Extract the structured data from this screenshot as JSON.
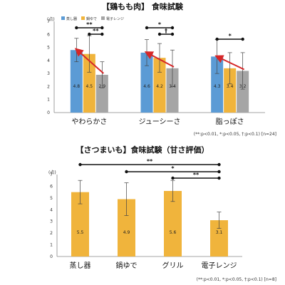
{
  "chart_data": [
    {
      "type": "bar",
      "title": "【鶏もも肉】 食味試験",
      "unit_label": "(点)",
      "ylim": [
        0,
        7
      ],
      "yticks": [
        0,
        1,
        2,
        3,
        4,
        5,
        6,
        7
      ],
      "grid": false,
      "legend_position": "top-left",
      "categories": [
        "やわらかさ",
        "ジューシーさ",
        "脂っぽさ"
      ],
      "series": [
        {
          "name": "蒸し器",
          "color": "#5b9bd5",
          "values": [
            4.8,
            4.6,
            4.3
          ],
          "errors": [
            0.9,
            1.0,
            1.3
          ]
        },
        {
          "name": "鍋ゆで",
          "color": "#f0b43c",
          "values": [
            4.5,
            4.2,
            3.4
          ],
          "errors": [
            1.4,
            1.1,
            1.2
          ]
        },
        {
          "name": "電子レンジ",
          "color": "#a5a5a5",
          "values": [
            2.9,
            3.4,
            3.2
          ],
          "errors": [
            1.0,
            1.4,
            1.4
          ]
        }
      ],
      "value_labels": [
        [
          "4.8",
          "4.6",
          "4.3"
        ],
        [
          "4.5",
          "4.2",
          "3.4"
        ],
        [
          "2.9",
          "3.4",
          "3.2"
        ]
      ],
      "significance": [
        {
          "category": 0,
          "from": 0,
          "to": 2,
          "label": "**"
        },
        {
          "category": 0,
          "from": 1,
          "to": 2,
          "label": "**"
        },
        {
          "category": 1,
          "from": 0,
          "to": 2,
          "label": "*"
        },
        {
          "category": 1,
          "from": 1,
          "to": 2,
          "label": "†"
        },
        {
          "category": 2,
          "from": 0,
          "to": 2,
          "label": "*"
        }
      ],
      "footnote": "(**:p<0.01, *:p<0.05, †:p<0.1) [n=24]"
    },
    {
      "type": "bar",
      "title": "【さつまいも】食味試験（甘さ評価）",
      "unit_label": "(点)",
      "ylim": [
        0,
        7
      ],
      "yticks": [
        0,
        1,
        2,
        3,
        4,
        5,
        6,
        7
      ],
      "grid": false,
      "categories": [
        "蒸し器",
        "鍋ゆで",
        "グリル",
        "電子レンジ"
      ],
      "series": [
        {
          "name": "",
          "values": [
            5.5,
            4.9,
            5.6,
            3.1
          ],
          "errors": [
            1.0,
            1.4,
            0.9,
            0.7
          ],
          "colors": [
            "#f0b43c",
            "#f0b43c",
            "#f0b43c",
            "#f0b43c"
          ]
        }
      ],
      "value_labels": [
        "5.5",
        "4.9",
        "5.6",
        "3.1"
      ],
      "significance": [
        {
          "from": 0,
          "to": 3,
          "label": "**"
        },
        {
          "from": 1,
          "to": 3,
          "label": "*"
        },
        {
          "from": 2,
          "to": 3,
          "label": "**"
        }
      ],
      "footnote": "(**:p<0.01, *:p<0.05, †:p<0.1) [n=8]"
    }
  ]
}
